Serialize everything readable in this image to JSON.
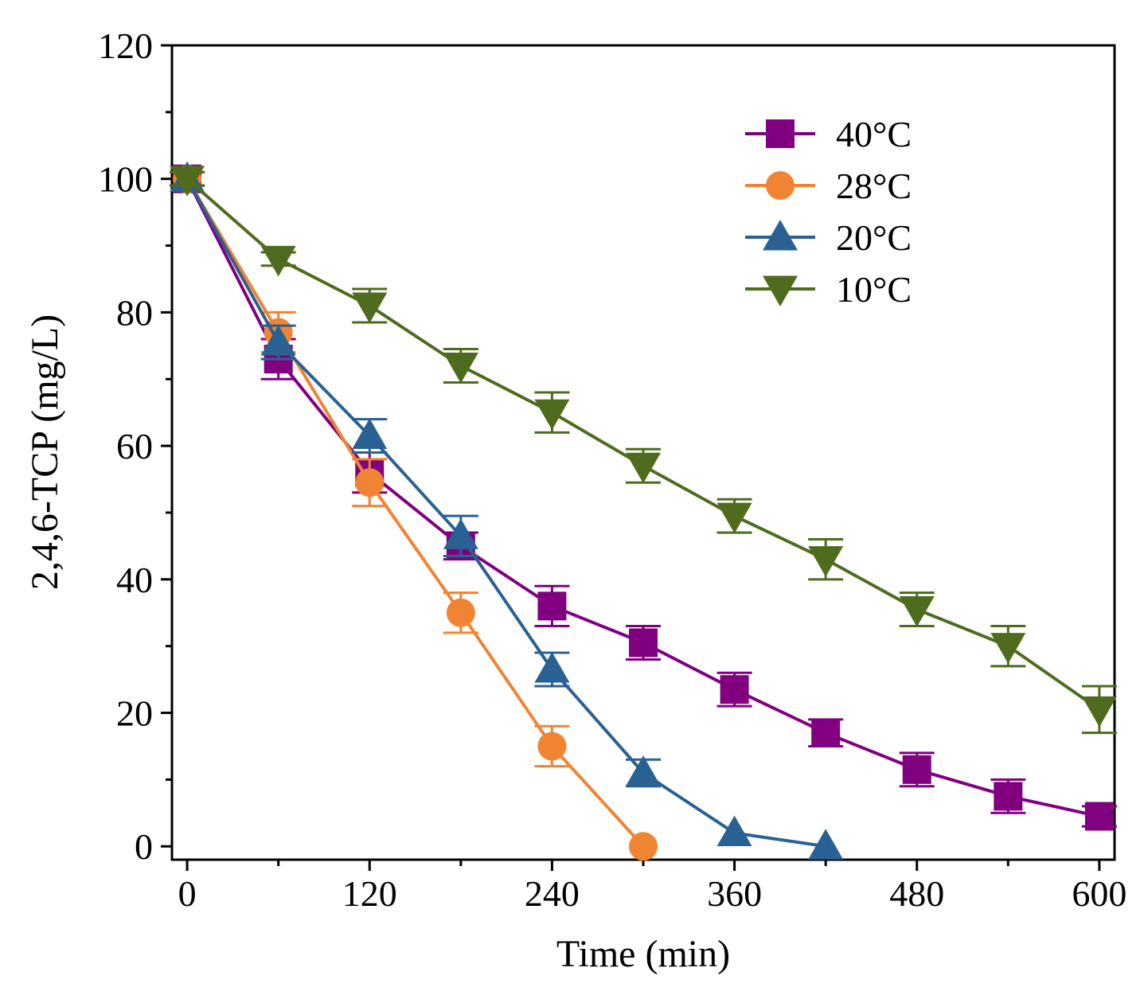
{
  "chart_data": {
    "type": "line",
    "title": "",
    "xlabel": "Time (min)",
    "ylabel": "2,4,6-TCP (mg/L)",
    "xlim": [
      -10,
      610
    ],
    "ylim": [
      -2,
      120
    ],
    "xticks": [
      0,
      120,
      240,
      360,
      480,
      600
    ],
    "xtick_labels": [
      "0",
      "120",
      "240",
      "360",
      "480",
      "600"
    ],
    "yticks": [
      0,
      20,
      40,
      60,
      80,
      100,
      120
    ],
    "ytick_labels": [
      "0",
      "20",
      "40",
      "60",
      "80",
      "100",
      "120"
    ],
    "yminor_ticks": [
      10,
      30,
      50,
      70,
      90,
      110
    ],
    "xminor_ticks": [
      60,
      180,
      300,
      420,
      540
    ],
    "legend_position": "top-right",
    "series": [
      {
        "name": "40°C",
        "color": "#800080",
        "marker": "square",
        "x": [
          0,
          60,
          120,
          180,
          240,
          300,
          360,
          420,
          480,
          540,
          600
        ],
        "y": [
          100,
          73,
          56,
          45,
          36,
          30.5,
          23.5,
          17,
          11.5,
          7.5,
          4.5
        ],
        "err": [
          1,
          3,
          3,
          2,
          3,
          2.5,
          2.5,
          2,
          2.5,
          2.5,
          1.5
        ]
      },
      {
        "name": "28°C",
        "color": "#F08432",
        "marker": "circle",
        "x": [
          0,
          60,
          120,
          180,
          240,
          300
        ],
        "y": [
          100,
          77,
          54.5,
          35,
          15,
          0
        ],
        "err": [
          1,
          3,
          3.5,
          3,
          3,
          0
        ]
      },
      {
        "name": "20°C",
        "color": "#2A6193",
        "marker": "triangle-up",
        "x": [
          0,
          60,
          120,
          180,
          240,
          300,
          360,
          420
        ],
        "y": [
          100,
          75.5,
          61.5,
          46.5,
          26.5,
          11,
          2,
          0
        ],
        "err": [
          1,
          2.5,
          2.5,
          3,
          2.5,
          2,
          0,
          0
        ]
      },
      {
        "name": "10°C",
        "color": "#4F6B1E",
        "marker": "triangle-down",
        "x": [
          0,
          60,
          120,
          180,
          240,
          300,
          360,
          420,
          480,
          540,
          600
        ],
        "y": [
          100,
          88,
          81,
          72,
          65,
          57,
          49.5,
          43,
          35.5,
          30,
          20.5
        ],
        "err": [
          1,
          1,
          2.5,
          2.5,
          3,
          2.5,
          2.5,
          3,
          2.5,
          3,
          3.5
        ]
      }
    ]
  }
}
